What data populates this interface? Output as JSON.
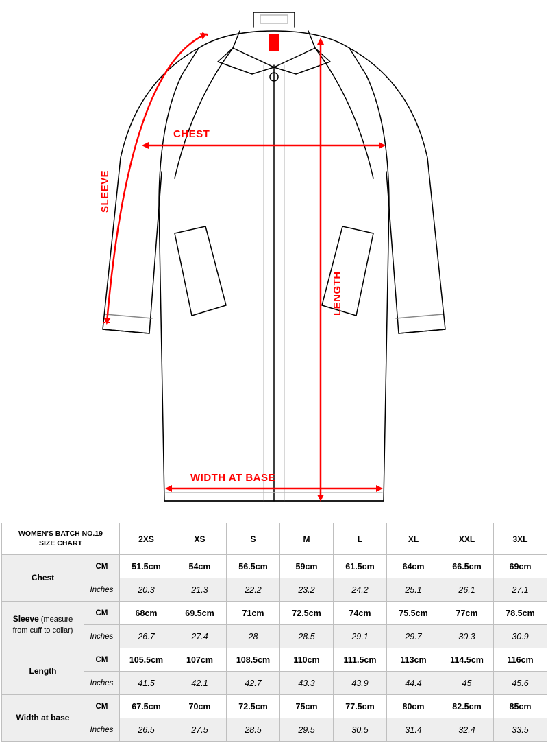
{
  "diagram": {
    "labels": {
      "sleeve": "SLEEVE",
      "chest": "CHEST",
      "length": "LENGTH",
      "width_at_base": "WIDTH AT BASE"
    },
    "colors": {
      "arrow": "#ff0000",
      "outline": "#000000",
      "tag": "#ff0000",
      "bg": "#ffffff"
    }
  },
  "table": {
    "title_line1": "WOMEN'S BATCH NO.19",
    "title_line2": "SIZE CHART",
    "sizes": [
      "2XS",
      "XS",
      "S",
      "M",
      "L",
      "XL",
      "XXL",
      "3XL"
    ],
    "unit_cm_label": "CM",
    "unit_in_label": "Inches",
    "measurements": [
      {
        "label": "Chest",
        "sub": "",
        "cm": [
          "51.5cm",
          "54cm",
          "56.5cm",
          "59cm",
          "61.5cm",
          "64cm",
          "66.5cm",
          "69cm"
        ],
        "in": [
          "20.3",
          "21.3",
          "22.2",
          "23.2",
          "24.2",
          "25.1",
          "26.1",
          "27.1"
        ]
      },
      {
        "label": "Sleeve",
        "sub": " (measure from cuff to collar)",
        "cm": [
          "68cm",
          "69.5cm",
          "71cm",
          "72.5cm",
          "74cm",
          "75.5cm",
          "77cm",
          "78.5cm"
        ],
        "in": [
          "26.7",
          "27.4",
          "28",
          "28.5",
          "29.1",
          "29.7",
          "30.3",
          "30.9"
        ]
      },
      {
        "label": "Length",
        "sub": "",
        "cm": [
          "105.5cm",
          "107cm",
          "108.5cm",
          "110cm",
          "111.5cm",
          "113cm",
          "114.5cm",
          "116cm"
        ],
        "in": [
          "41.5",
          "42.1",
          "42.7",
          "43.3",
          "43.9",
          "44.4",
          "45",
          "45.6"
        ]
      },
      {
        "label": "Width at base",
        "sub": "",
        "cm": [
          "67.5cm",
          "70cm",
          "72.5cm",
          "75cm",
          "77.5cm",
          "80cm",
          "82.5cm",
          "85cm"
        ],
        "in": [
          "26.5",
          "27.5",
          "28.5",
          "29.5",
          "30.5",
          "31.4",
          "32.4",
          "33.5"
        ]
      }
    ]
  }
}
